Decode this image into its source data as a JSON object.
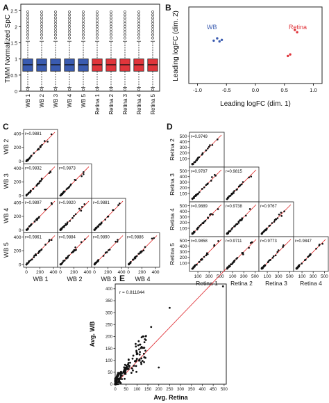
{
  "chart_data": [
    {
      "panel": "A",
      "type": "box",
      "ylabel": "TMM Normalized SpC",
      "categories": [
        "WB 1",
        "WB 2",
        "WB 3",
        "WB 4",
        "WB 5",
        "Retina 1",
        "Retina 2",
        "Retina 3",
        "Retina 4",
        "Retina 5"
      ],
      "groups": [
        "WB",
        "WB",
        "WB",
        "WB",
        "WB",
        "Retina",
        "Retina",
        "Retina",
        "Retina",
        "Retina"
      ],
      "group_colors": {
        "WB": "#3a5bb0",
        "Retina": "#e0353b"
      },
      "yticks": [
        0,
        0.5,
        1,
        1.5,
        2,
        2.5
      ],
      "ylim": [
        0,
        2.7
      ]
    },
    {
      "panel": "B",
      "type": "scatter",
      "xlabel": "Leading logFC (dim. 1)",
      "ylabel": "Leading logFC (dim. 2)",
      "xticks": [
        -1.0,
        -0.5,
        0.0,
        0.5,
        1.0
      ],
      "xlim": [
        -1.15,
        1.15
      ],
      "ylim": [
        -1,
        1
      ],
      "annotations": [
        {
          "text": "WB",
          "color": "#3a5bb0"
        },
        {
          "text": "Retina",
          "color": "#e0353b"
        }
      ],
      "series": [
        {
          "group": "WB",
          "color": "#3a5bb0",
          "x": [
            -0.72,
            -0.66,
            -0.62,
            -0.58
          ],
          "y": [
            0.12,
            0.18,
            0.1,
            0.14
          ]
        },
        {
          "group": "Retina",
          "color": "#e0353b",
          "x": [
            0.56,
            0.6,
            0.68,
            0.72
          ],
          "y": [
            -0.28,
            -0.24,
            0.4,
            0.34
          ]
        }
      ]
    },
    {
      "panel": "C",
      "type": "scatter-matrix",
      "variables": [
        "WB 1",
        "WB 2",
        "WB 3",
        "WB 4",
        "WB 5"
      ],
      "ticks": [
        0,
        200,
        400
      ],
      "range": [
        0,
        420
      ],
      "correlations": [
        {
          "row": "WB 2",
          "col": "WB 1",
          "r": "r=0.9881"
        },
        {
          "row": "WB 3",
          "col": "WB 1",
          "r": "r=0.9832"
        },
        {
          "row": "WB 3",
          "col": "WB 2",
          "r": "r=0.9873"
        },
        {
          "row": "WB 4",
          "col": "WB 1",
          "r": "r=0.9897"
        },
        {
          "row": "WB 4",
          "col": "WB 2",
          "r": "r=0.9920"
        },
        {
          "row": "WB 4",
          "col": "WB 3",
          "r": "r=0.9881"
        },
        {
          "row": "WB 5",
          "col": "WB 1",
          "r": "r=0.9861"
        },
        {
          "row": "WB 5",
          "col": "WB 2",
          "r": "r=0.9884"
        },
        {
          "row": "WB 5",
          "col": "WB 3",
          "r": "r=0.9890"
        },
        {
          "row": "WB 5",
          "col": "WB 4",
          "r": "r=0.9886"
        }
      ]
    },
    {
      "panel": "D",
      "type": "scatter-matrix",
      "variables": [
        "Retina 1",
        "Retina 2",
        "Retina 3",
        "Retina 4",
        "Retina 5"
      ],
      "ticks": [
        0,
        100,
        200,
        300,
        400,
        500
      ],
      "axis_ticks": [
        100,
        300,
        500
      ],
      "range": [
        0,
        520
      ],
      "correlations": [
        {
          "row": "Retina 2",
          "col": "Retina 1",
          "r": "r=0.9749"
        },
        {
          "row": "Retina 3",
          "col": "Retina 1",
          "r": "r=0.9787"
        },
        {
          "row": "Retina 3",
          "col": "Retina 2",
          "r": "r=0.9815"
        },
        {
          "row": "Retina 4",
          "col": "Retina 1",
          "r": "r=0.9889"
        },
        {
          "row": "Retina 4",
          "col": "Retina 2",
          "r": "r=0.9738"
        },
        {
          "row": "Retina 4",
          "col": "Retina 3",
          "r": "r=0.9767"
        },
        {
          "row": "Retina 5",
          "col": "Retina 1",
          "r": "r=0.9858"
        },
        {
          "row": "Retina 5",
          "col": "Retina 2",
          "r": "r=0.9711"
        },
        {
          "row": "Retina 5",
          "col": "Retina 3",
          "r": "r=0.9773"
        },
        {
          "row": "Retina 5",
          "col": "Retina 4",
          "r": "r=0.9847"
        }
      ]
    },
    {
      "panel": "E",
      "type": "scatter",
      "xlabel": "Avg. Retina",
      "ylabel": "Avg. WB",
      "xticks": [
        0,
        50,
        100,
        150,
        200,
        250,
        300,
        350,
        400,
        450,
        500
      ],
      "yticks": [
        0,
        50,
        100,
        150,
        200,
        250,
        300,
        350,
        400
      ],
      "xlim": [
        0,
        510
      ],
      "ylim": [
        0,
        420
      ],
      "r": "r = 0.811844",
      "fit_color": "#e0353b"
    }
  ]
}
